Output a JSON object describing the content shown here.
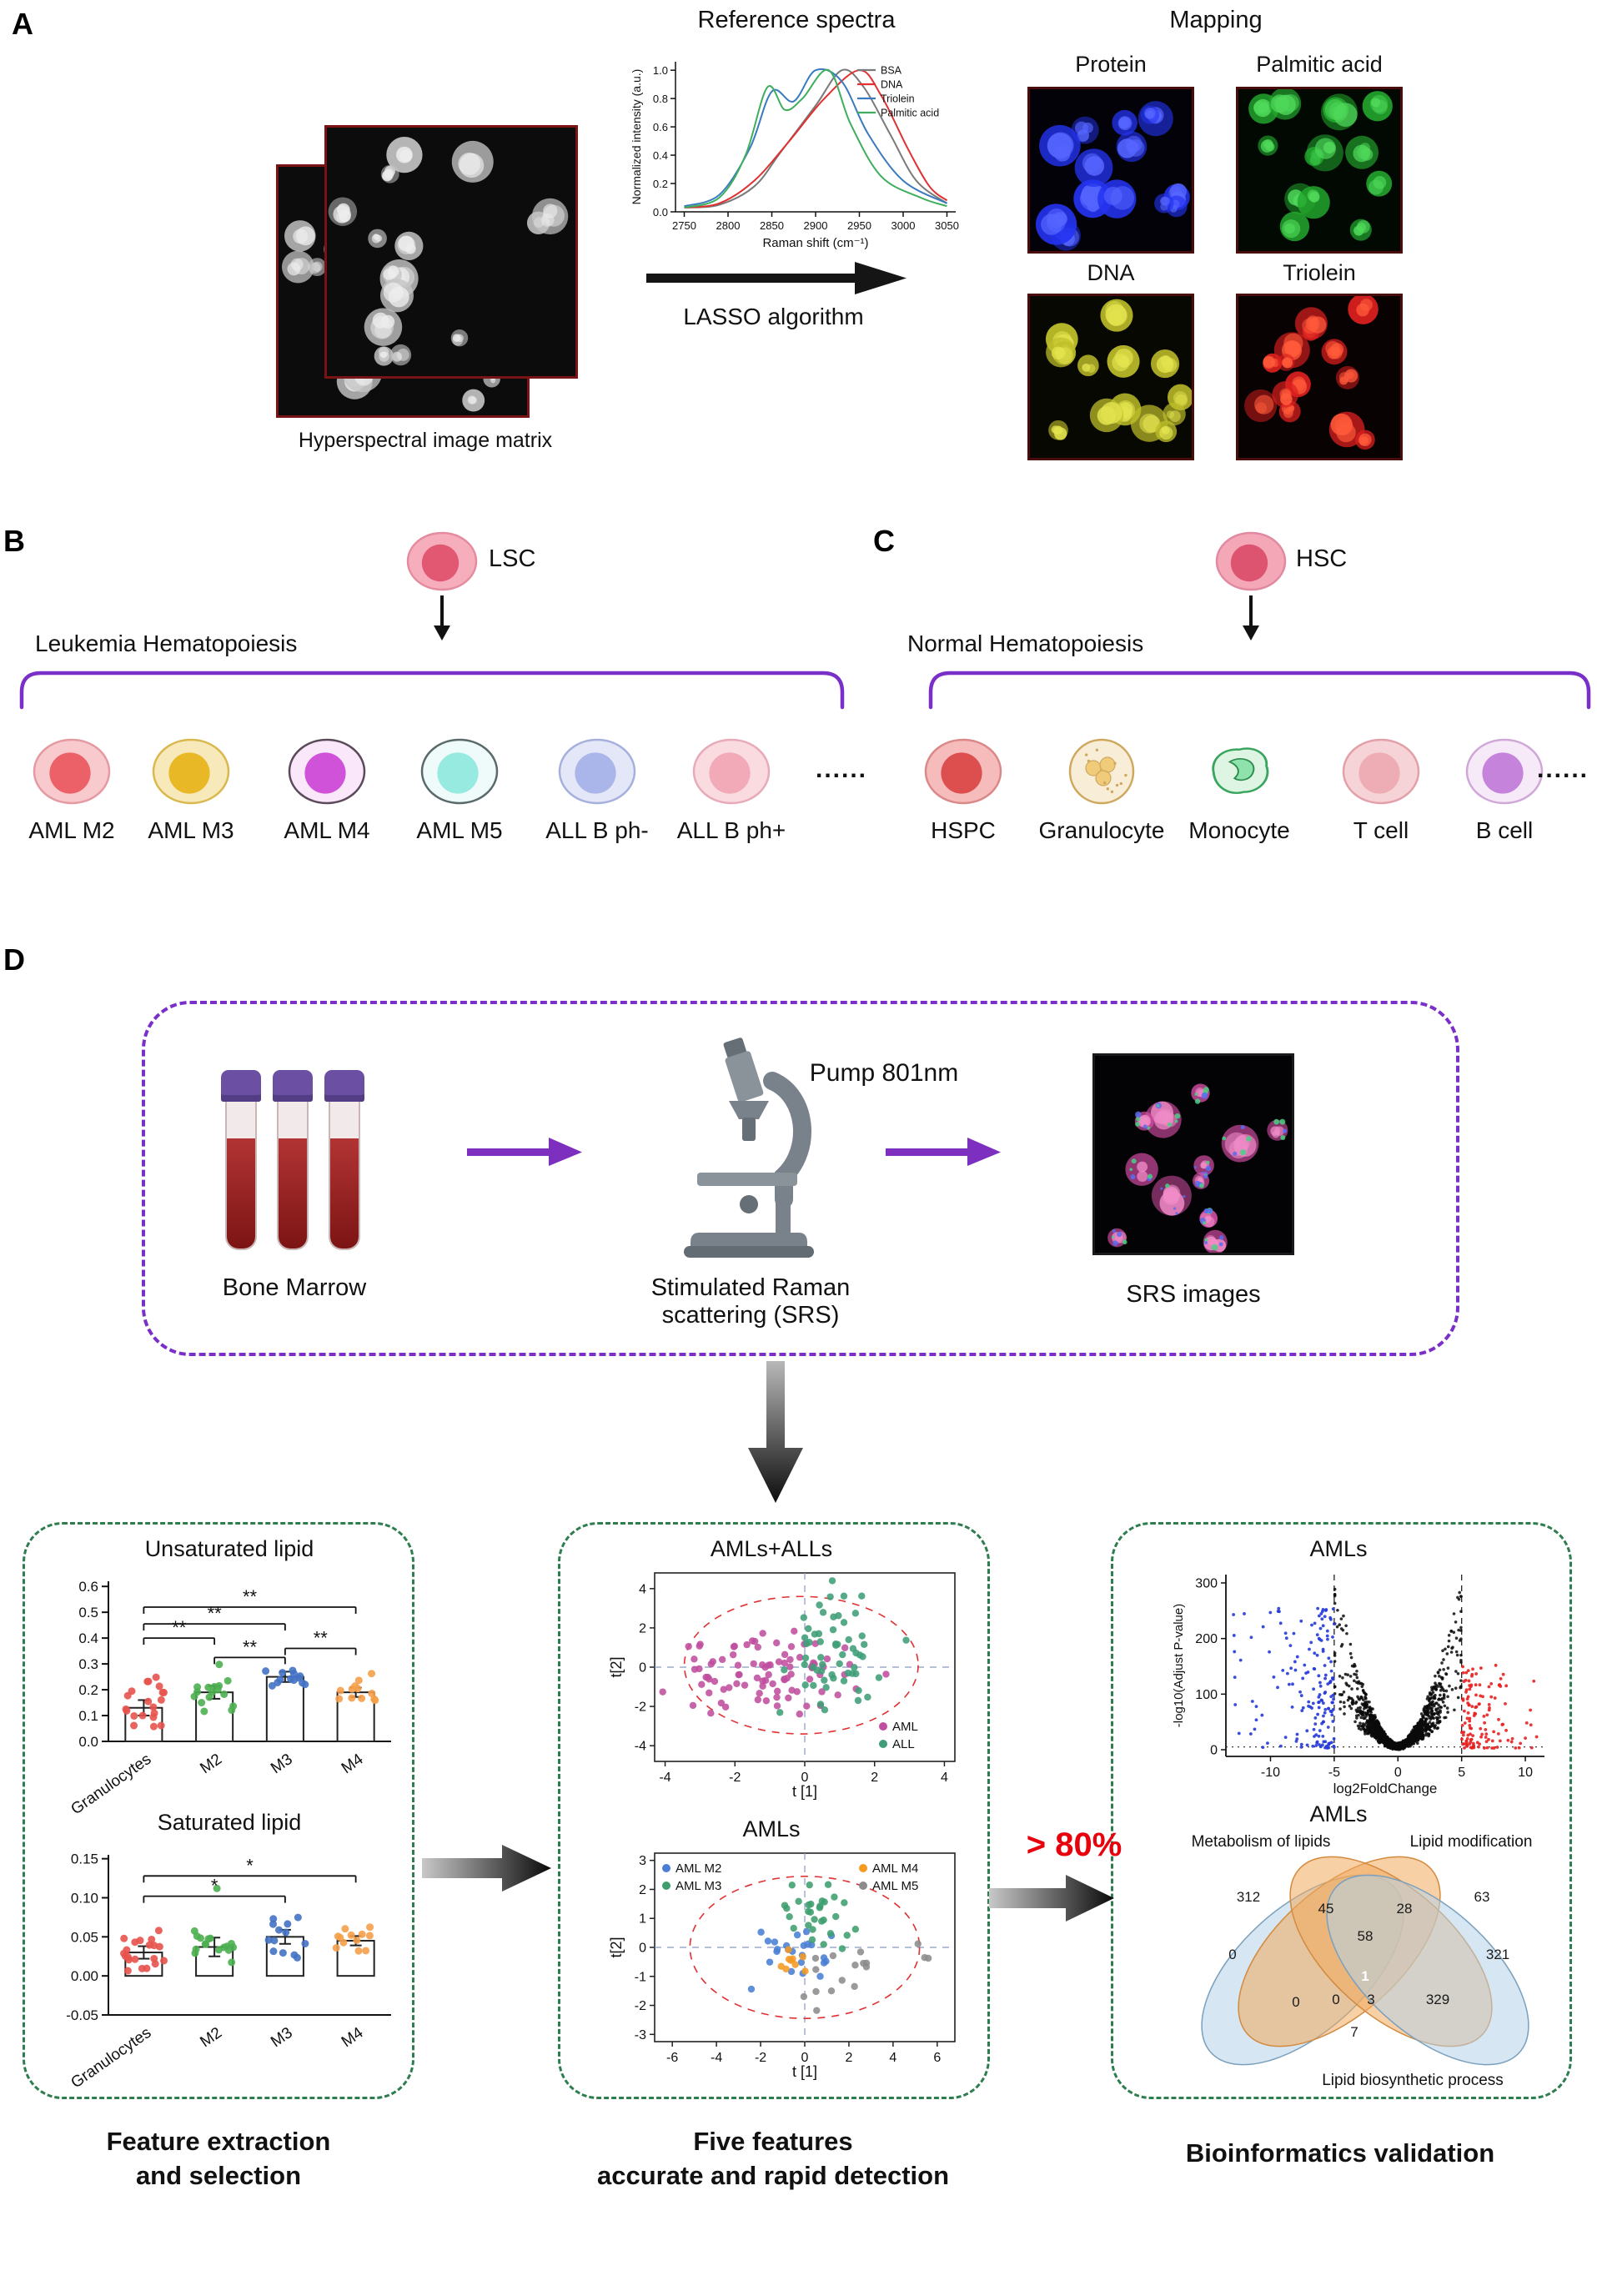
{
  "panelA": {
    "label": "A",
    "hyperspectral_caption": "Hyperspectral image matrix",
    "lasso_label": "LASSO algorithm",
    "mapping_title": "Mapping",
    "mapping_panels": [
      {
        "label": "Protein",
        "key": "protein"
      },
      {
        "label": "Palmitic acid",
        "key": "palmitic"
      },
      {
        "label": "DNA",
        "key": "dna"
      },
      {
        "label": "Triolein",
        "key": "triolein"
      }
    ]
  },
  "panelB": {
    "label": "B",
    "stem_label": "LSC",
    "lineage_label": "Leukemia Hematopoiesis",
    "dots": "......",
    "stem_cell": {
      "type": "simple",
      "outer": "#f6aebc",
      "inner": "#e25872",
      "stroke": "#e58ba0"
    },
    "cells": [
      {
        "label": "AML M2",
        "type": "simple",
        "outer": "#f8c9cd",
        "inner": "#ec6168",
        "stroke": "#e59aa2"
      },
      {
        "label": "AML M3",
        "type": "simple",
        "outer": "#f8e9bb",
        "inner": "#e9b826",
        "stroke": "#d9b84e"
      },
      {
        "label": "AML M4",
        "type": "simple",
        "outer": "#fae8fa",
        "inner": "#cf52d8",
        "stroke": "#5a4a5a"
      },
      {
        "label": "AML M5",
        "type": "simple",
        "outer": "#eefbfa",
        "inner": "#97eadf",
        "stroke": "#5a6a6a"
      },
      {
        "label": "ALL B ph-",
        "type": "simple",
        "outer": "#e3e7f7",
        "inner": "#aab6ea",
        "stroke": "#a6b0dc"
      },
      {
        "label": "ALL B ph+",
        "type": "simple",
        "outer": "#f9dbe0",
        "inner": "#f2aab9",
        "stroke": "#e8aab8"
      }
    ]
  },
  "panelC": {
    "label": "C",
    "stem_label": "HSC",
    "lineage_label": "Normal Hematopoiesis",
    "dots": "......",
    "stem_cell": {
      "type": "simple",
      "outer": "#f4a7b6",
      "inner": "#dd5470",
      "stroke": "#e089a0"
    },
    "cells": [
      {
        "label": "HSPC",
        "type": "simple",
        "outer": "#f6bcbc",
        "inner": "#dd4f4f",
        "stroke": "#db8888"
      },
      {
        "label": "Granulocyte",
        "type": "granulocyte",
        "outer": "#f8eed8",
        "inner": "#eec56a",
        "stroke": "#cfa85e"
      },
      {
        "label": "Monocyte",
        "type": "monocyte",
        "outer": "#def5e3",
        "inner": "#8fe2ac",
        "stroke": "#3aa55f"
      },
      {
        "label": "T cell",
        "type": "simple",
        "outer": "#f6d3d6",
        "inner": "#eeacb4",
        "stroke": "#e3a0a8"
      },
      {
        "label": "B cell",
        "type": "simple",
        "outer": "#f6eaf8",
        "inner": "#c583dc",
        "stroke": "#cfa8d8"
      }
    ]
  },
  "panelD": {
    "label": "D",
    "bone_marrow": "Bone Marrow",
    "pump_label": "Pump 801nm",
    "srs_line1": "Stimulated Raman",
    "srs_line2": "scattering (SRS)",
    "srs_images_label": "SRS images",
    "accuracy": "> 80%",
    "caption1_line1": "Feature extraction",
    "caption1_line2": "and selection",
    "caption2_line1": "Five features",
    "caption2_line2": "accurate and rapid detection",
    "caption3": "Bioinformatics validation"
  },
  "micro_images": {
    "hyperspectral": {
      "bg": "#0c0c0c",
      "border": "#7a1414",
      "main": "#c4c4c4",
      "light": "#ededed",
      "n": 15
    },
    "protein": {
      "bg": "#020208",
      "border": "#4a0d0d",
      "main": "#2433f0",
      "light": "#5565ff",
      "n": 14
    },
    "palmitic": {
      "bg": "#020802",
      "border": "#4a0d0d",
      "main": "#23a82e",
      "light": "#4fd95a",
      "n": 14
    },
    "dna": {
      "bg": "#080802",
      "border": "#4a0d0d",
      "main": "#bebe2a",
      "light": "#e2e24e",
      "n": 14
    },
    "triolein": {
      "bg": "#080202",
      "border": "#4a0d0d",
      "main": "#dc1f1f",
      "light": "#ff5a3a",
      "n": 14
    },
    "srs": {
      "bg": "#030306",
      "border": "#1a1a1a",
      "main": "#d84fa8",
      "light": "#f08cc8",
      "fleck": "#5a6cf0",
      "fleck2": "#49d082",
      "n": 12
    }
  },
  "chart_data": {
    "reference_spectra": {
      "type": "line",
      "title": "Reference spectra",
      "xlabel": "Raman shift (cm⁻¹)",
      "ylabel": "Normalized intensity (a.u.)",
      "xlim": [
        2740,
        3060
      ],
      "ylim": [
        0,
        1.06
      ],
      "xticks": [
        2750,
        2800,
        2850,
        2900,
        2950,
        3000,
        3050
      ],
      "yticks": [
        0.0,
        0.2,
        0.4,
        0.6,
        0.8,
        1.0
      ],
      "ytick_labels": [
        "0.0",
        "0.2",
        "0.4",
        "0.6",
        "0.8",
        "1.0"
      ],
      "series": [
        {
          "name": "BSA",
          "color": "#7a7a7a",
          "points": [
            [
              2750,
              0.03
            ],
            [
              2790,
              0.05
            ],
            [
              2830,
              0.18
            ],
            [
              2860,
              0.42
            ],
            [
              2900,
              0.75
            ],
            [
              2930,
              1.0
            ],
            [
              2955,
              0.88
            ],
            [
              2985,
              0.55
            ],
            [
              3015,
              0.22
            ],
            [
              3050,
              0.06
            ]
          ]
        },
        {
          "name": "DNA",
          "color": "#e03030",
          "points": [
            [
              2750,
              0.03
            ],
            [
              2790,
              0.06
            ],
            [
              2830,
              0.22
            ],
            [
              2870,
              0.5
            ],
            [
              2910,
              0.8
            ],
            [
              2950,
              1.0
            ],
            [
              2975,
              0.82
            ],
            [
              3005,
              0.45
            ],
            [
              3030,
              0.18
            ],
            [
              3050,
              0.08
            ]
          ]
        },
        {
          "name": "Triolein",
          "color": "#3a7abf",
          "points": [
            [
              2750,
              0.04
            ],
            [
              2790,
              0.12
            ],
            [
              2825,
              0.45
            ],
            [
              2850,
              0.85
            ],
            [
              2875,
              0.78
            ],
            [
              2900,
              1.0
            ],
            [
              2930,
              0.92
            ],
            [
              2960,
              0.55
            ],
            [
              3000,
              0.22
            ],
            [
              3050,
              0.06
            ]
          ]
        },
        {
          "name": "Palmitic acid",
          "color": "#3fae5c",
          "points": [
            [
              2750,
              0.03
            ],
            [
              2790,
              0.1
            ],
            [
              2820,
              0.4
            ],
            [
              2845,
              0.88
            ],
            [
              2865,
              0.72
            ],
            [
              2885,
              0.8
            ],
            [
              2915,
              1.0
            ],
            [
              2940,
              0.62
            ],
            [
              2975,
              0.25
            ],
            [
              3020,
              0.1
            ],
            [
              3050,
              0.04
            ]
          ]
        }
      ]
    },
    "unsaturated_lipid": {
      "type": "bar",
      "title": "Unsaturated lipid",
      "categories": [
        "Granulocytes",
        "M2",
        "M3",
        "M4"
      ],
      "values": [
        0.13,
        0.19,
        0.25,
        0.19
      ],
      "errors": [
        0.03,
        0.025,
        0.02,
        0.018
      ],
      "ylim": [
        0,
        0.62
      ],
      "yticks": [
        0,
        0.1,
        0.2,
        0.3,
        0.4,
        0.5,
        0.6
      ],
      "ytick_labels": [
        "0.0",
        "0.1",
        "0.2",
        "0.3",
        "0.4",
        "0.5",
        "0.6"
      ],
      "point_colors": [
        "#e8534e",
        "#4caf50",
        "#4472c4",
        "#f5a04a"
      ],
      "points_n": [
        20,
        16,
        13,
        12
      ],
      "spread": [
        0.05,
        0.04,
        0.03,
        0.025
      ],
      "significance": [
        {
          "a": 0,
          "b": 1,
          "y": 0.4,
          "label": "**"
        },
        {
          "a": 0,
          "b": 2,
          "y": 0.455,
          "label": "**"
        },
        {
          "a": 0,
          "b": 3,
          "y": 0.52,
          "label": "**"
        },
        {
          "a": 1,
          "b": 2,
          "y": 0.325,
          "label": "**"
        },
        {
          "a": 2,
          "b": 3,
          "y": 0.36,
          "label": "**"
        }
      ]
    },
    "saturated_lipid": {
      "type": "bar",
      "title": "Saturated lipid",
      "categories": [
        "Granulocytes",
        "M2",
        "M3",
        "M4"
      ],
      "values": [
        0.03,
        0.037,
        0.05,
        0.045
      ],
      "errors": [
        0.008,
        0.012,
        0.009,
        0.006
      ],
      "ylim": [
        -0.05,
        0.155
      ],
      "yticks": [
        -0.05,
        0,
        0.05,
        0.1,
        0.15
      ],
      "ytick_labels": [
        "-0.05",
        "0.00",
        "0.05",
        "0.10",
        "0.15"
      ],
      "point_colors": [
        "#e8534e",
        "#4caf50",
        "#4472c4",
        "#f5a04a"
      ],
      "points_n": [
        20,
        16,
        13,
        12
      ],
      "spread": [
        0.012,
        0.014,
        0.015,
        0.008
      ],
      "outliers": [
        {
          "group": 1,
          "value": 0.112
        }
      ],
      "significance": [
        {
          "a": 0,
          "b": 2,
          "y": 0.102,
          "label": "*"
        },
        {
          "a": 0,
          "b": 3,
          "y": 0.128,
          "label": "*"
        }
      ]
    },
    "pca_amls_alls": {
      "type": "scatter",
      "title": "AMLs+ALLs",
      "xlabel": "t [1]",
      "ylabel": "t[2]",
      "xlim": [
        -4.3,
        4.3
      ],
      "ylim": [
        -4.8,
        4.8
      ],
      "xticks": [
        -4,
        -2,
        0,
        2,
        4
      ],
      "yticks": [
        -4,
        -2,
        0,
        2,
        4
      ],
      "ellipse": {
        "cx": -0.1,
        "cy": 0.1,
        "rx": 3.35,
        "ry": 3.5
      },
      "clusters": [
        {
          "name": "AML",
          "color": "#bf4f9e",
          "n": 88,
          "cx": -1.2,
          "cy": -0.35,
          "sx": 1.15,
          "sy": 1.05
        },
        {
          "name": "ALL",
          "color": "#3f9e78",
          "n": 58,
          "cx": 0.95,
          "cy": 0.7,
          "sx": 0.75,
          "sy": 1.45
        }
      ],
      "legend": "bottom-right"
    },
    "pca_amls": {
      "type": "scatter",
      "title": "AMLs",
      "xlabel": "t [1]",
      "ylabel": "t[2]",
      "xlim": [
        -6.8,
        6.8
      ],
      "ylim": [
        -3.25,
        3.25
      ],
      "xticks": [
        -6,
        -4,
        -2,
        0,
        2,
        4,
        6
      ],
      "yticks": [
        -3,
        -2,
        -1,
        0,
        1,
        2,
        3
      ],
      "ellipse": {
        "cx": 0,
        "cy": 0,
        "rx": 5.2,
        "ry": 2.45
      },
      "clusters": [
        {
          "name": "AML M2",
          "color": "#4a7fd4",
          "n": 24,
          "cx": -0.35,
          "cy": -0.1,
          "sx": 0.75,
          "sy": 0.5
        },
        {
          "name": "AML M3",
          "color": "#3f9e6e",
          "n": 30,
          "cx": 0.8,
          "cy": 1.15,
          "sx": 0.8,
          "sy": 0.6
        },
        {
          "name": "AML M4",
          "color": "#f59a23",
          "n": 9,
          "cx": -0.55,
          "cy": -0.55,
          "sx": 0.35,
          "sy": 0.25
        },
        {
          "name": "AML M5",
          "color": "#8c8c8c",
          "n": 17,
          "cx": 1.6,
          "cy": -1.15,
          "sx": 1.8,
          "sy": 0.5
        }
      ],
      "legend": "split"
    },
    "volcano": {
      "type": "scatter",
      "title": "AMLs",
      "xlabel": "log2FoldChange",
      "ylabel": "-log10(Adjust P-value)",
      "xlim": [
        -13.5,
        11.5
      ],
      "ylim": [
        -12,
        315
      ],
      "xticks": [
        -10,
        -5,
        0,
        5,
        10
      ],
      "yticks": [
        0,
        100,
        200,
        300
      ],
      "vlines": [
        -5,
        5
      ],
      "hline": 5,
      "groups": [
        {
          "name": "down",
          "color": "#2438d8",
          "n": 170
        },
        {
          "name": "ns",
          "color": "#0a0a0a",
          "n": 1500
        },
        {
          "name": "up",
          "color": "#e82020",
          "n": 130
        }
      ]
    },
    "venn": {
      "type": "venn",
      "title": "AMLs",
      "labels": [
        "Metabolism of lipids",
        "Lipid modification",
        "Lipid biosynthetic process"
      ],
      "counts": [
        "312",
        "63",
        "45",
        "28",
        "0",
        "58",
        "321",
        "1",
        "0",
        "3",
        "329",
        "0",
        "7"
      ],
      "blue": "#b5d2e8",
      "orange": "#f2a95c",
      "blue_stroke": "#7aa0bd",
      "orange_stroke": "#d28a3e"
    }
  }
}
